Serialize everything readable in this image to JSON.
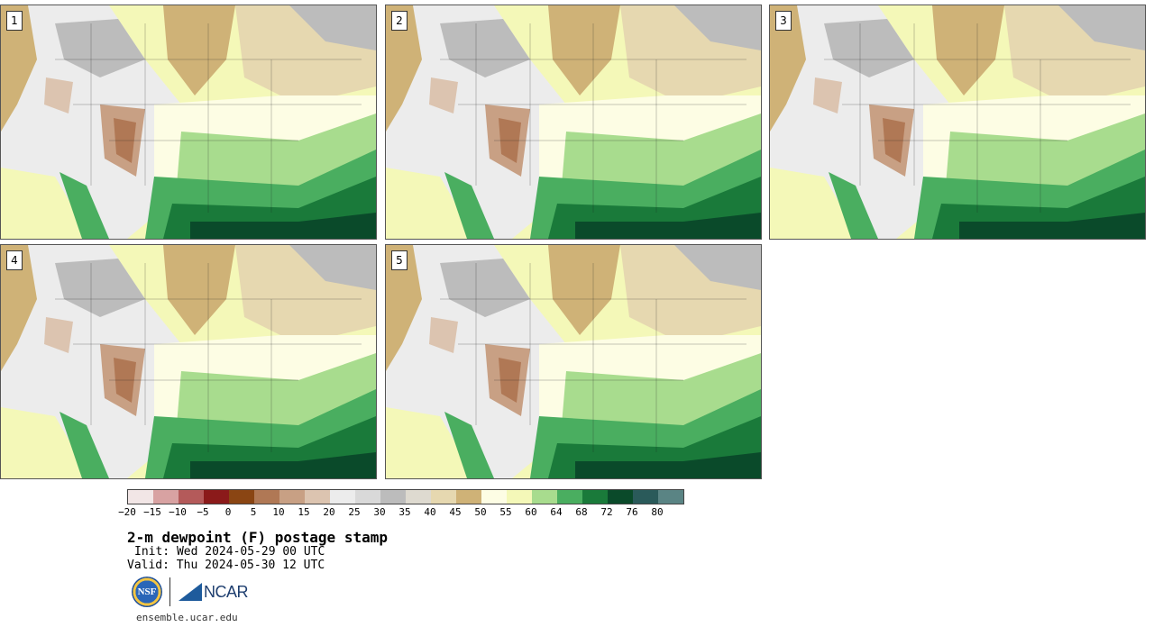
{
  "members": [
    "1",
    "2",
    "3",
    "4",
    "5"
  ],
  "colorbar": {
    "colors": [
      "#f2e6e6",
      "#d8a2a2",
      "#b45a5a",
      "#8b1a1a",
      "#8a4513",
      "#b07855",
      "#c8a084",
      "#dcc4b0",
      "#ececec",
      "#d9d9d9",
      "#bcbcbc",
      "#dedad0",
      "#e6d8b0",
      "#cfb277",
      "#fdfde4",
      "#f4f8b8",
      "#a8dc8e",
      "#4aae60",
      "#1a7a3a",
      "#0a4a2a",
      "#2a5a5a",
      "#5a8484"
    ],
    "tick_labels": [
      "−20",
      "−15",
      "−10",
      "−5",
      "0",
      "5",
      "10",
      "15",
      "20",
      "25",
      "30",
      "35",
      "40",
      "45",
      "50",
      "55",
      "60",
      "64",
      "68",
      "72",
      "76",
      "80"
    ]
  },
  "title": "2-m dewpoint (F) postage stamp",
  "init": "Init: Wed 2024-05-29 00 UTC",
  "valid": "Valid: Thu 2024-05-30 12 UTC",
  "logo_nsf": "NSF",
  "logo_ncar": "NCAR",
  "url": "ensemble.ucar.edu"
}
